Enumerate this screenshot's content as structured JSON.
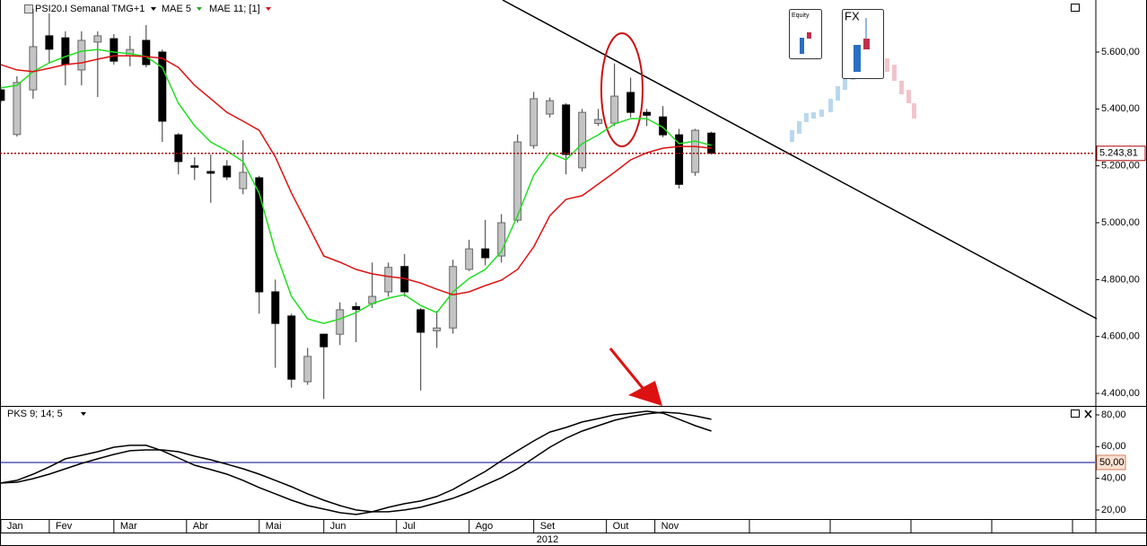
{
  "chart_data": [
    {
      "type": "candlestick",
      "title": "PSI20.I Semanal TMG+1",
      "x_axis_label": "2012",
      "x": [
        0,
        1,
        2,
        3,
        4,
        5,
        6,
        7,
        8,
        9,
        10,
        11,
        12,
        13,
        14,
        15,
        16,
        17,
        18,
        19,
        20,
        21,
        22,
        23,
        24,
        25,
        26,
        27,
        28,
        29,
        30,
        31,
        32,
        33,
        34,
        35,
        36,
        37,
        38,
        39,
        40,
        41,
        42,
        43,
        44
      ],
      "xlim": [
        -0.05,
        67.75
      ],
      "xticks": [
        {
          "value": 0,
          "label": "Jan"
        },
        {
          "value": 3,
          "label": "Fev"
        },
        {
          "value": 7,
          "label": "Mar"
        },
        {
          "value": 11.5,
          "label": "Abr"
        },
        {
          "value": 16,
          "label": "Mai"
        },
        {
          "value": 20,
          "label": "Jun"
        },
        {
          "value": 24.5,
          "label": "Jul"
        },
        {
          "value": 29,
          "label": "Ago"
        },
        {
          "value": 33,
          "label": "Set"
        },
        {
          "value": 37.5,
          "label": "Out"
        },
        {
          "value": 40.5,
          "label": "Nov"
        }
      ],
      "open": [
        5467,
        5310,
        5467,
        5657,
        5650,
        5537,
        5635,
        5647,
        5587,
        5641,
        5600,
        5309,
        5200,
        5180,
        5199,
        5120,
        5158,
        4757,
        4672,
        4441,
        4608,
        4608,
        4705,
        4716,
        4757,
        4846,
        4694,
        4620,
        4630,
        4836,
        4908,
        4883,
        5009,
        5271,
        5382,
        5414,
        5193,
        5349,
        5350,
        5458,
        5388,
        5372,
        5309,
        5177,
        5315
      ],
      "high": [
        5480,
        5515,
        5752,
        5736,
        5673,
        5673,
        5673,
        5663,
        5657,
        5695,
        5609,
        5315,
        5230,
        5240,
        5220,
        5290,
        5165,
        4800,
        4680,
        4560,
        4610,
        4720,
        4720,
        4860,
        4860,
        4890,
        4700,
        4690,
        4870,
        4940,
        5010,
        5030,
        5310,
        5460,
        5440,
        5420,
        5400,
        5400,
        5560,
        5510,
        5400,
        5410,
        5330,
        5330,
        5320
      ],
      "low": [
        5420,
        5303,
        5436,
        5562,
        5483,
        5483,
        5442,
        5556,
        5550,
        5546,
        5284,
        5170,
        5150,
        5070,
        5150,
        5100,
        4680,
        4490,
        4420,
        4430,
        4380,
        4570,
        4580,
        4700,
        4740,
        4740,
        4410,
        4560,
        4610,
        4830,
        4850,
        4860,
        5000,
        5260,
        5370,
        5170,
        5180,
        5340,
        5340,
        5370,
        5340,
        5300,
        5120,
        5165,
        5240
      ],
      "close": [
        5430,
        5493,
        5619,
        5610,
        5556,
        5641,
        5657,
        5568,
        5609,
        5556,
        5357,
        5215,
        5195,
        5174,
        5161,
        5177,
        4757,
        4646,
        4450,
        4530,
        4564,
        4694,
        4695,
        4741,
        4843,
        4757,
        4615,
        4630,
        4846,
        4908,
        4877,
        5000,
        5284,
        5436,
        5429,
        5240,
        5388,
        5363,
        5445,
        5388,
        5378,
        5309,
        5135,
        5325,
        5244
      ],
      "up_color": "#c4c4c4",
      "down_color": "#000000",
      "series": [
        {
          "name": "MAE 5",
          "color": "#22dd22",
          "values": [
            5474,
            5483,
            5531,
            5562,
            5584,
            5603,
            5609,
            5600,
            5594,
            5584,
            5546,
            5420,
            5341,
            5284,
            5253,
            5215,
            5104,
            4899,
            4741,
            4662,
            4646,
            4662,
            4684,
            4716,
            4735,
            4747,
            4709,
            4684,
            4757,
            4804,
            4836,
            4899,
            5025,
            5167,
            5246,
            5221,
            5278,
            5309,
            5347,
            5366,
            5366,
            5335,
            5278,
            5287,
            5272
          ]
        },
        {
          "name": "MAE 11; [1]",
          "color": "#dd1111",
          "values": [
            5556,
            5537,
            5531,
            5543,
            5556,
            5562,
            5575,
            5587,
            5587,
            5584,
            5578,
            5546,
            5483,
            5436,
            5388,
            5357,
            5325,
            5231,
            5104,
            4994,
            4883,
            4861,
            4836,
            4820,
            4811,
            4804,
            4788,
            4766,
            4747,
            4757,
            4779,
            4798,
            4836,
            4915,
            5025,
            5082,
            5095,
            5136,
            5177,
            5221,
            5246,
            5262,
            5268,
            5268,
            5262
          ]
        }
      ],
      "ylim": [
        4356,
        5783
      ],
      "yticks": [
        {
          "value": 4400,
          "label": "4.400,00"
        },
        {
          "value": 4600,
          "label": "4.600,00"
        },
        {
          "value": 4800,
          "label": "4.800,00"
        },
        {
          "value": 5000,
          "label": "5.000,00"
        },
        {
          "value": 5200,
          "label": "5.200,00"
        },
        {
          "value": 5400,
          "label": "5.400,00"
        },
        {
          "value": 5600,
          "label": "5.600,00"
        }
      ],
      "last_price": {
        "value": 5243.81,
        "label": "5.243,81",
        "color": "#aa0000"
      },
      "annotations": [
        "Equity",
        "FX"
      ]
    },
    {
      "type": "line",
      "title": "PKS 9; 14; 5",
      "x": [
        0,
        1,
        2,
        3,
        4,
        5,
        6,
        7,
        8,
        9,
        10,
        11,
        12,
        13,
        14,
        15,
        16,
        17,
        18,
        19,
        20,
        21,
        22,
        23,
        24,
        25,
        26,
        27,
        28,
        29,
        30,
        31,
        32,
        33,
        34,
        35,
        36,
        37,
        38,
        39,
        40,
        41,
        42,
        43,
        44
      ],
      "xlim": [
        -0.05,
        67.75
      ],
      "series": [
        {
          "color": "#000000",
          "values": [
            37.0,
            38.7,
            42.6,
            47.2,
            52.3,
            54.5,
            56.8,
            59.6,
            60.8,
            60.8,
            57.4,
            52.8,
            48.3,
            45.5,
            42.6,
            38.7,
            34.2,
            30.2,
            26.2,
            22.8,
            20.6,
            18.3,
            17.2,
            18.9,
            21.7,
            24.0,
            25.7,
            28.5,
            33.0,
            38.7,
            44.3,
            51.1,
            57.4,
            63.6,
            69.2,
            72.1,
            75.5,
            77.7,
            80.0,
            81.1,
            82.3,
            81.1,
            77.2,
            73.2,
            69.8
          ]
        },
        {
          "color": "#000000",
          "values": [
            37.0,
            37.5,
            39.8,
            42.6,
            46.0,
            49.4,
            52.3,
            55.1,
            57.4,
            57.9,
            57.9,
            56.8,
            54.0,
            51.7,
            48.9,
            46.0,
            42.6,
            38.7,
            34.7,
            30.2,
            26.2,
            22.8,
            20.0,
            18.9,
            18.9,
            20.0,
            21.7,
            24.5,
            27.4,
            31.3,
            35.9,
            40.4,
            46.0,
            52.8,
            59.6,
            65.3,
            69.8,
            73.2,
            76.6,
            78.9,
            80.6,
            81.7,
            81.1,
            79.4,
            77.2
          ]
        }
      ],
      "ylim": [
        14.3,
        85.1
      ],
      "yticks": [
        {
          "value": 20,
          "label": "20,00"
        },
        {
          "value": 40,
          "label": "40,00"
        },
        {
          "value": 60,
          "label": "60,00"
        },
        {
          "value": 80,
          "label": "80,00"
        }
      ],
      "level": {
        "value": 50,
        "label": "50,00",
        "color": "#00008b"
      }
    }
  ]
}
